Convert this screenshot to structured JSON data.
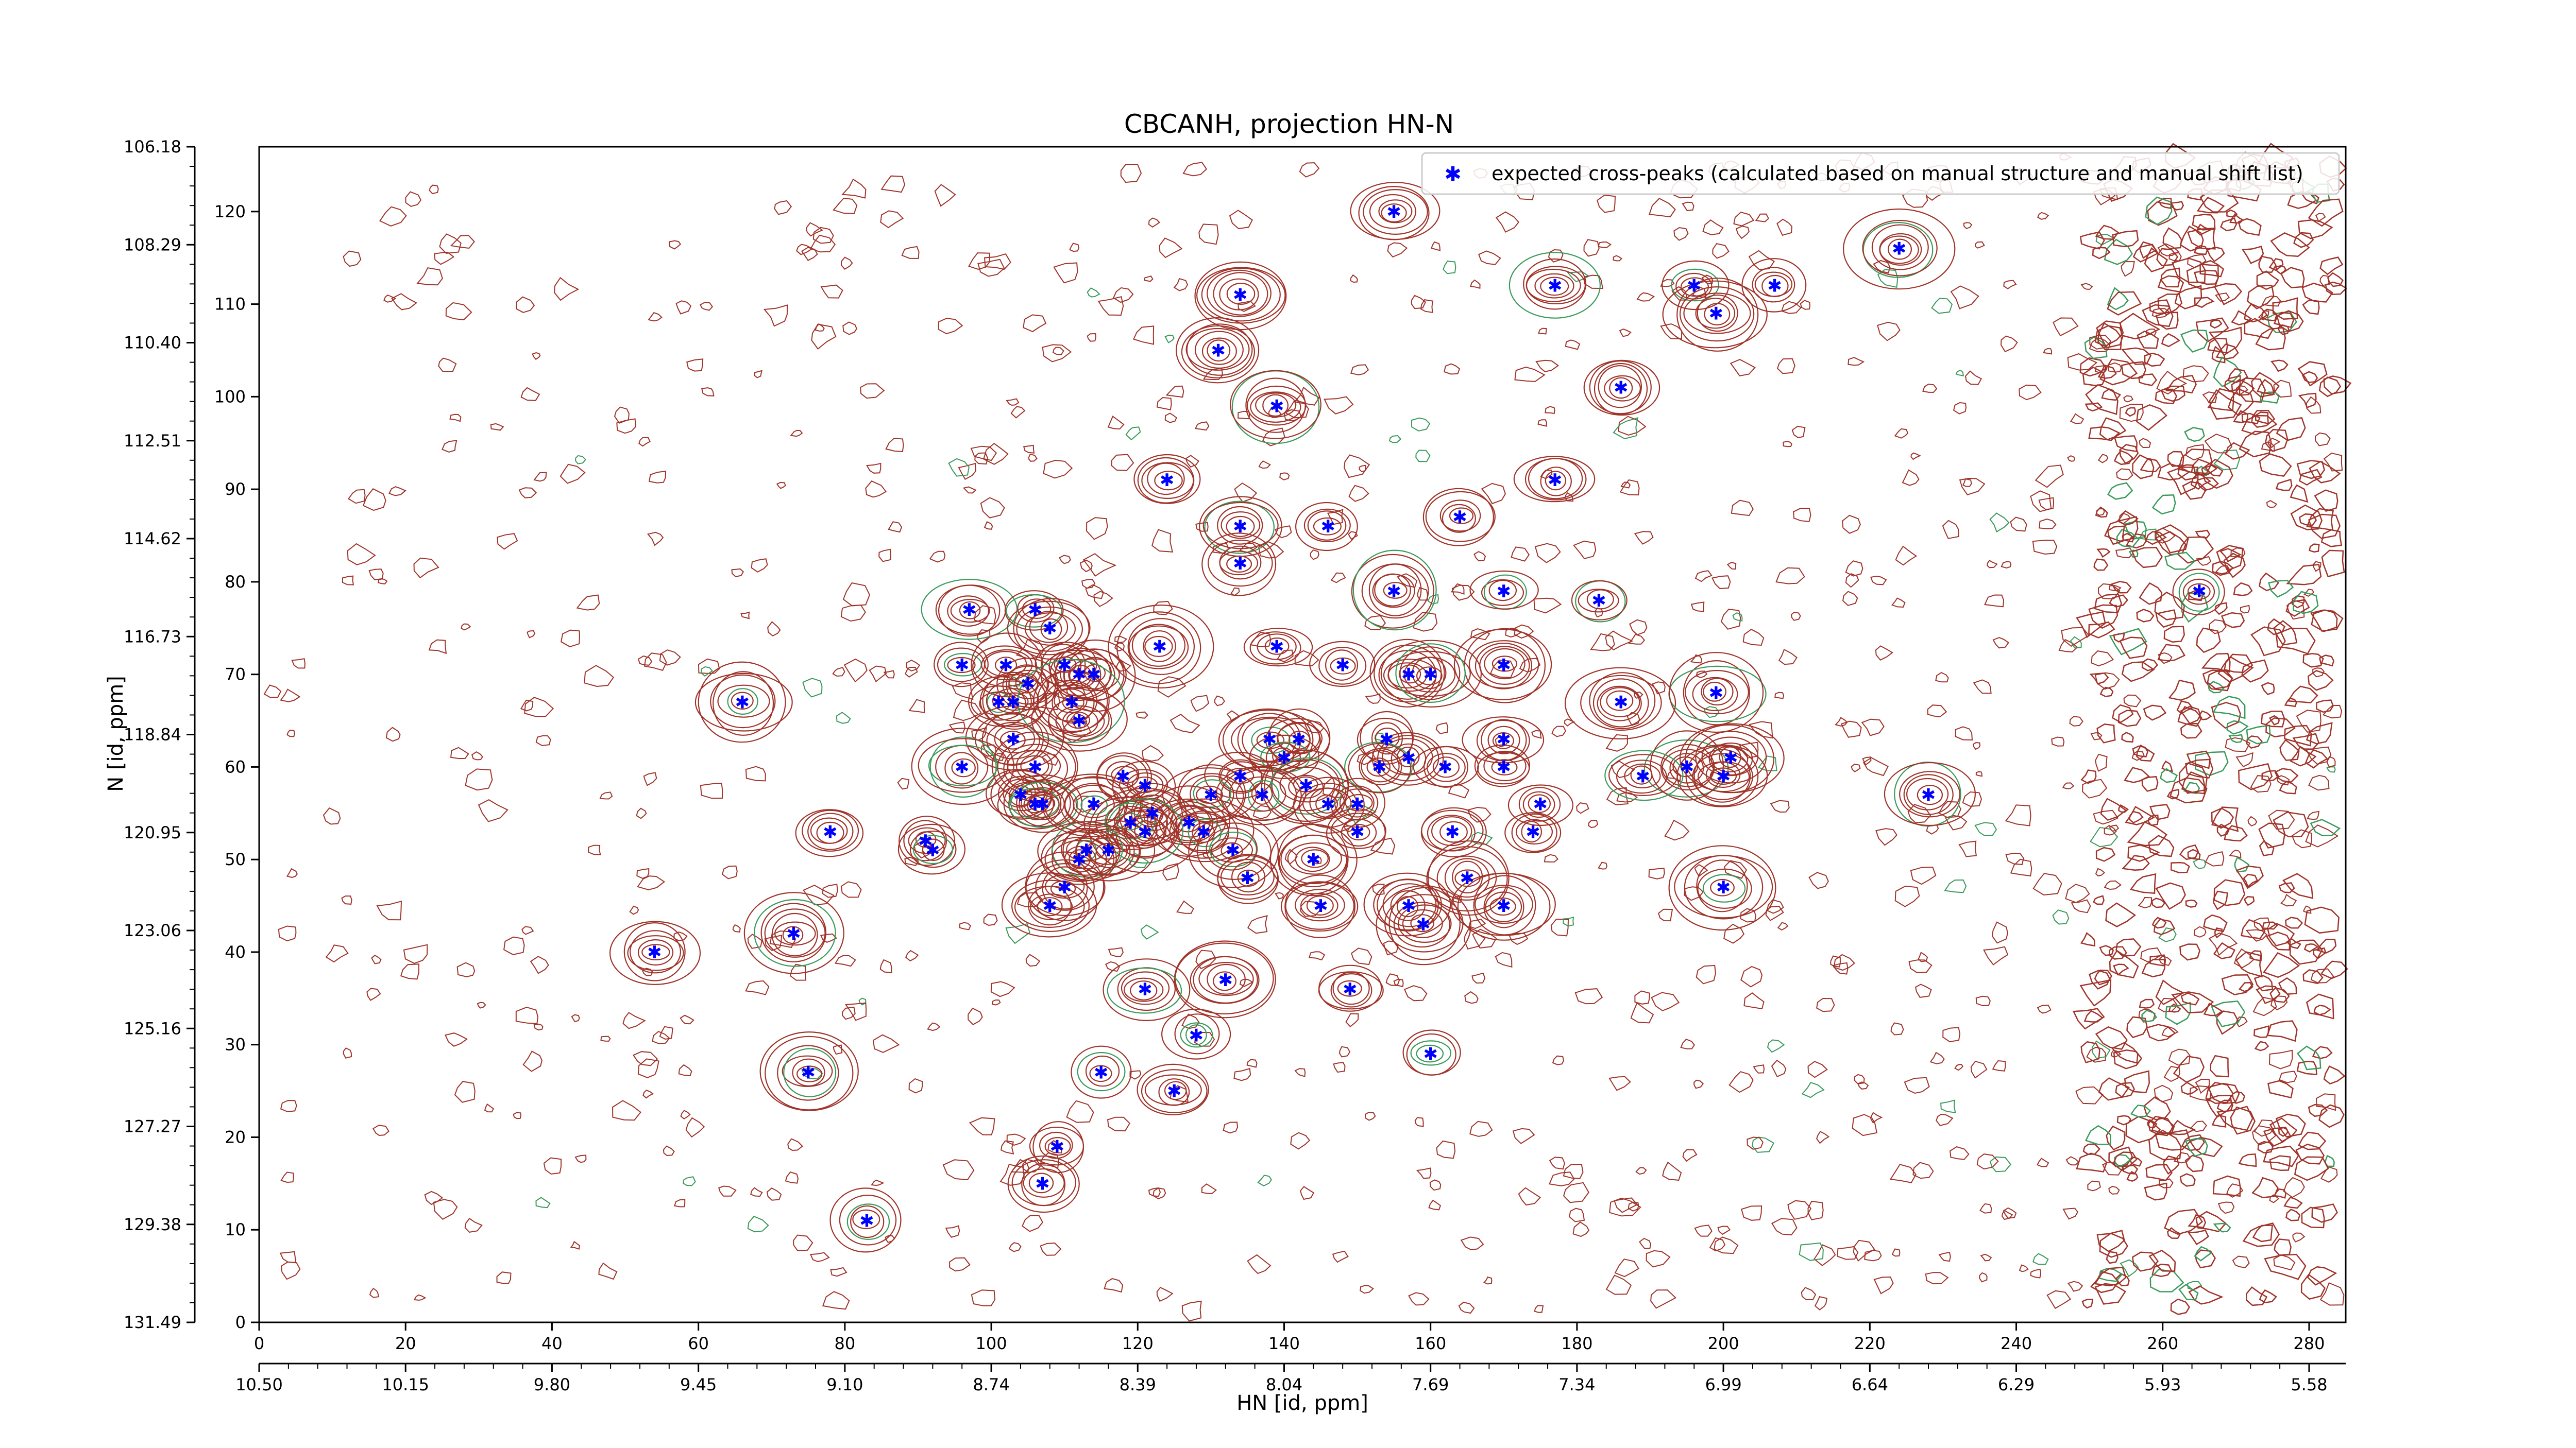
{
  "chart_data": {
    "type": "scatter",
    "title": "CBCANH, projection HN-N",
    "xlabel": "HN [id, ppm]",
    "ylabel": "N [id, ppm]",
    "xlim": [
      0,
      285
    ],
    "ylim": [
      0,
      127
    ],
    "x_ticks": [
      0,
      20,
      40,
      60,
      80,
      100,
      120,
      140,
      160,
      180,
      200,
      220,
      240,
      260,
      280
    ],
    "y_ticks": [
      0,
      10,
      20,
      30,
      40,
      50,
      60,
      70,
      80,
      90,
      100,
      110,
      120
    ],
    "x_ppm_labels": [
      "10.50",
      "10.15",
      "9.80",
      "9.45",
      "9.10",
      "8.74",
      "8.39",
      "8.04",
      "7.69",
      "7.34",
      "6.99",
      "6.64",
      "6.29",
      "5.93",
      "5.58"
    ],
    "y_ppm_labels": [
      "131.49",
      "129.38",
      "127.27",
      "125.16",
      "123.06",
      "120.95",
      "118.84",
      "116.73",
      "114.62",
      "112.51",
      "110.40",
      "108.29",
      "106.18"
    ],
    "legend": {
      "label": "expected cross-peaks (calculated based on manual structure and manual shift list)",
      "position": "top-right"
    },
    "colors": {
      "marker": "#0000ff",
      "contour_positive": "#a0342a",
      "contour_negative": "#3a9a5b"
    },
    "series": [
      {
        "name": "expected cross-peaks (calculated based on manual structure and manual shift list)",
        "points": [
          [
            155,
            120
          ],
          [
            224,
            116
          ],
          [
            134,
            111
          ],
          [
            177,
            112
          ],
          [
            196,
            112
          ],
          [
            207,
            112
          ],
          [
            199,
            109
          ],
          [
            131,
            105
          ],
          [
            139,
            99
          ],
          [
            186,
            101
          ],
          [
            124,
            91
          ],
          [
            177,
            91
          ],
          [
            164,
            87
          ],
          [
            146,
            86
          ],
          [
            134,
            86
          ],
          [
            134,
            82
          ],
          [
            170,
            79
          ],
          [
            155,
            79
          ],
          [
            183,
            78
          ],
          [
            265,
            79
          ],
          [
            97,
            77
          ],
          [
            106,
            77
          ],
          [
            108,
            75
          ],
          [
            96,
            71
          ],
          [
            102,
            71
          ],
          [
            110,
            71
          ],
          [
            139,
            73
          ],
          [
            123,
            73
          ],
          [
            148,
            71
          ],
          [
            170,
            71
          ],
          [
            157,
            70
          ],
          [
            160,
            70
          ],
          [
            112,
            70
          ],
          [
            114,
            70
          ],
          [
            105,
            69
          ],
          [
            101,
            67
          ],
          [
            103,
            67
          ],
          [
            111,
            67
          ],
          [
            66,
            67
          ],
          [
            112,
            65
          ],
          [
            186,
            67
          ],
          [
            199,
            68
          ],
          [
            138,
            63
          ],
          [
            142,
            63
          ],
          [
            103,
            63
          ],
          [
            154,
            63
          ],
          [
            170,
            63
          ],
          [
            140,
            61
          ],
          [
            157,
            61
          ],
          [
            96,
            60
          ],
          [
            106,
            60
          ],
          [
            153,
            60
          ],
          [
            162,
            60
          ],
          [
            170,
            60
          ],
          [
            195,
            60
          ],
          [
            201,
            61
          ],
          [
            200,
            59
          ],
          [
            189,
            59
          ],
          [
            118,
            59
          ],
          [
            121,
            58
          ],
          [
            134,
            59
          ],
          [
            143,
            58
          ],
          [
            137,
            57
          ],
          [
            130,
            57
          ],
          [
            146,
            56
          ],
          [
            150,
            56
          ],
          [
            175,
            56
          ],
          [
            104,
            57
          ],
          [
            106,
            56
          ],
          [
            107,
            56
          ],
          [
            122,
            55
          ],
          [
            114,
            56
          ],
          [
            127,
            54
          ],
          [
            119,
            54
          ],
          [
            129,
            53
          ],
          [
            150,
            53
          ],
          [
            121,
            53
          ],
          [
            78,
            53
          ],
          [
            91,
            52
          ],
          [
            92,
            51
          ],
          [
            133,
            51
          ],
          [
            174,
            53
          ],
          [
            113,
            51
          ],
          [
            163,
            53
          ],
          [
            144,
            50
          ],
          [
            116,
            51
          ],
          [
            112,
            50
          ],
          [
            135,
            48
          ],
          [
            165,
            48
          ],
          [
            110,
            47
          ],
          [
            200,
            47
          ],
          [
            145,
            45
          ],
          [
            170,
            45
          ],
          [
            108,
            45
          ],
          [
            157,
            45
          ],
          [
            73,
            42
          ],
          [
            159,
            43
          ],
          [
            54,
            40
          ],
          [
            132,
            37
          ],
          [
            149,
            36
          ],
          [
            121,
            36
          ],
          [
            128,
            31
          ],
          [
            160,
            29
          ],
          [
            115,
            27
          ],
          [
            75,
            27
          ],
          [
            125,
            25
          ],
          [
            109,
            19
          ],
          [
            107,
            15
          ],
          [
            83,
            11
          ],
          [
            228,
            57
          ]
        ]
      }
    ]
  }
}
